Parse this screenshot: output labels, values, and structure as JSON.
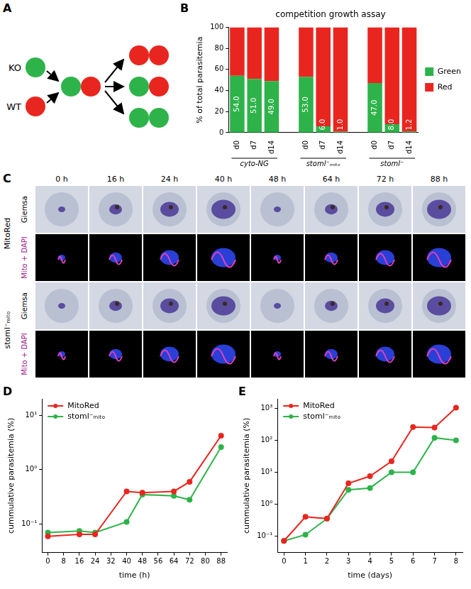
{
  "panel_a": {
    "panel_label": "A",
    "nodes": [
      {
        "label": "KO",
        "color": "#2eb34a"
      },
      {
        "label": "WT",
        "color": "#e8261f"
      }
    ]
  },
  "panel_c": {
    "panel_label": "C",
    "times": [
      "0 h",
      "16 h",
      "24 h",
      "40 h",
      "48 h",
      "64 h",
      "72 h",
      "88 h"
    ],
    "strains": [
      "MitoRed",
      "stoml⁻ₘᵢₜₒ"
    ],
    "rows": [
      "Giemsa",
      "Mito + DAPI"
    ]
  },
  "chart_data": [
    {
      "panel_label": "B",
      "type": "bar",
      "stacked": true,
      "title": "competition growth assay",
      "categories": [
        "d0",
        "d7",
        "d14",
        null,
        "d0",
        "d7",
        "d14",
        null,
        "d0",
        "d7",
        "d14"
      ],
      "groups": [
        "cyto-NG",
        "stoml⁻ₘᵢₜₒ",
        "stoml⁻"
      ],
      "series": [
        {
          "name": "Green",
          "color": "#2eb34a",
          "values": [
            54,
            51,
            49,
            null,
            53,
            6,
            1,
            null,
            47,
            8,
            1.2
          ],
          "value_labels": [
            "54.0",
            "51.0",
            "49.0",
            null,
            "53.0",
            "6.0",
            "1.0",
            null,
            "47.0",
            "8.0",
            "1.2"
          ]
        },
        {
          "name": "Red",
          "color": "#e8261f",
          "values": [
            46,
            49,
            51,
            null,
            47,
            94,
            99,
            null,
            53,
            92,
            98.8
          ]
        }
      ],
      "y_label": "% of total parasitemia",
      "ylim": [
        0,
        100
      ],
      "yticks": [
        0,
        20,
        40,
        60,
        80,
        100
      ],
      "grid": false,
      "legend": "right",
      "data_labels": true
    },
    {
      "panel_label": "D",
      "type": "line",
      "x_label": "time (h)",
      "y_label": "cummulative parasitemia (%)",
      "log": "y",
      "x": [
        0,
        16,
        24,
        40,
        48,
        64,
        72,
        88
      ],
      "xlim": [
        -3,
        91
      ],
      "xticks": [
        0,
        8,
        16,
        24,
        32,
        40,
        48,
        56,
        64,
        72,
        80,
        88
      ],
      "ylim": [
        0.03,
        20
      ],
      "yticks": [
        {
          "value": 0.1,
          "label": "10⁻¹"
        },
        {
          "value": 1,
          "label": "10⁰"
        },
        {
          "value": 10,
          "label": "10¹"
        }
      ],
      "grid": false,
      "legend": "upper left",
      "marker": "circle",
      "series": [
        {
          "name": "MitoRed",
          "color": "#e8261f",
          "values": [
            0.06,
            0.065,
            0.065,
            0.4,
            0.38,
            0.4,
            0.6,
            4.2
          ]
        },
        {
          "name": "stoml⁻ₘᵢₜₒ",
          "color": "#2eb34a",
          "values": [
            0.07,
            0.075,
            0.07,
            0.11,
            0.35,
            0.33,
            0.28,
            2.6
          ]
        }
      ]
    },
    {
      "panel_label": "E",
      "type": "line",
      "x_label": "time (days)",
      "y_label": "cummulative parasitemia (%)",
      "log": "y",
      "x": [
        0,
        1,
        2,
        3,
        4,
        5,
        6,
        7,
        8
      ],
      "xlim": [
        -0.3,
        8.3
      ],
      "xticks": [
        0,
        1,
        2,
        3,
        4,
        5,
        6,
        7,
        8
      ],
      "ylim": [
        0.03,
        2000
      ],
      "yticks": [
        {
          "value": 0.1,
          "label": "10⁻¹"
        },
        {
          "value": 1,
          "label": "10⁰"
        },
        {
          "value": 10,
          "label": "10¹"
        },
        {
          "value": 100,
          "label": "10²"
        },
        {
          "value": 1000,
          "label": "10³"
        }
      ],
      "grid": false,
      "legend": "upper left",
      "marker": "circle",
      "series": [
        {
          "name": "MitoRed",
          "color": "#e8261f",
          "values": [
            0.07,
            0.4,
            0.35,
            4.5,
            7.5,
            22,
            260,
            250,
            1050
          ]
        },
        {
          "name": "stoml⁻ₘᵢₜₒ",
          "color": "#2eb34a",
          "values": [
            0.07,
            0.11,
            0.35,
            2.8,
            3.2,
            10,
            10,
            120,
            100
          ]
        }
      ]
    }
  ]
}
